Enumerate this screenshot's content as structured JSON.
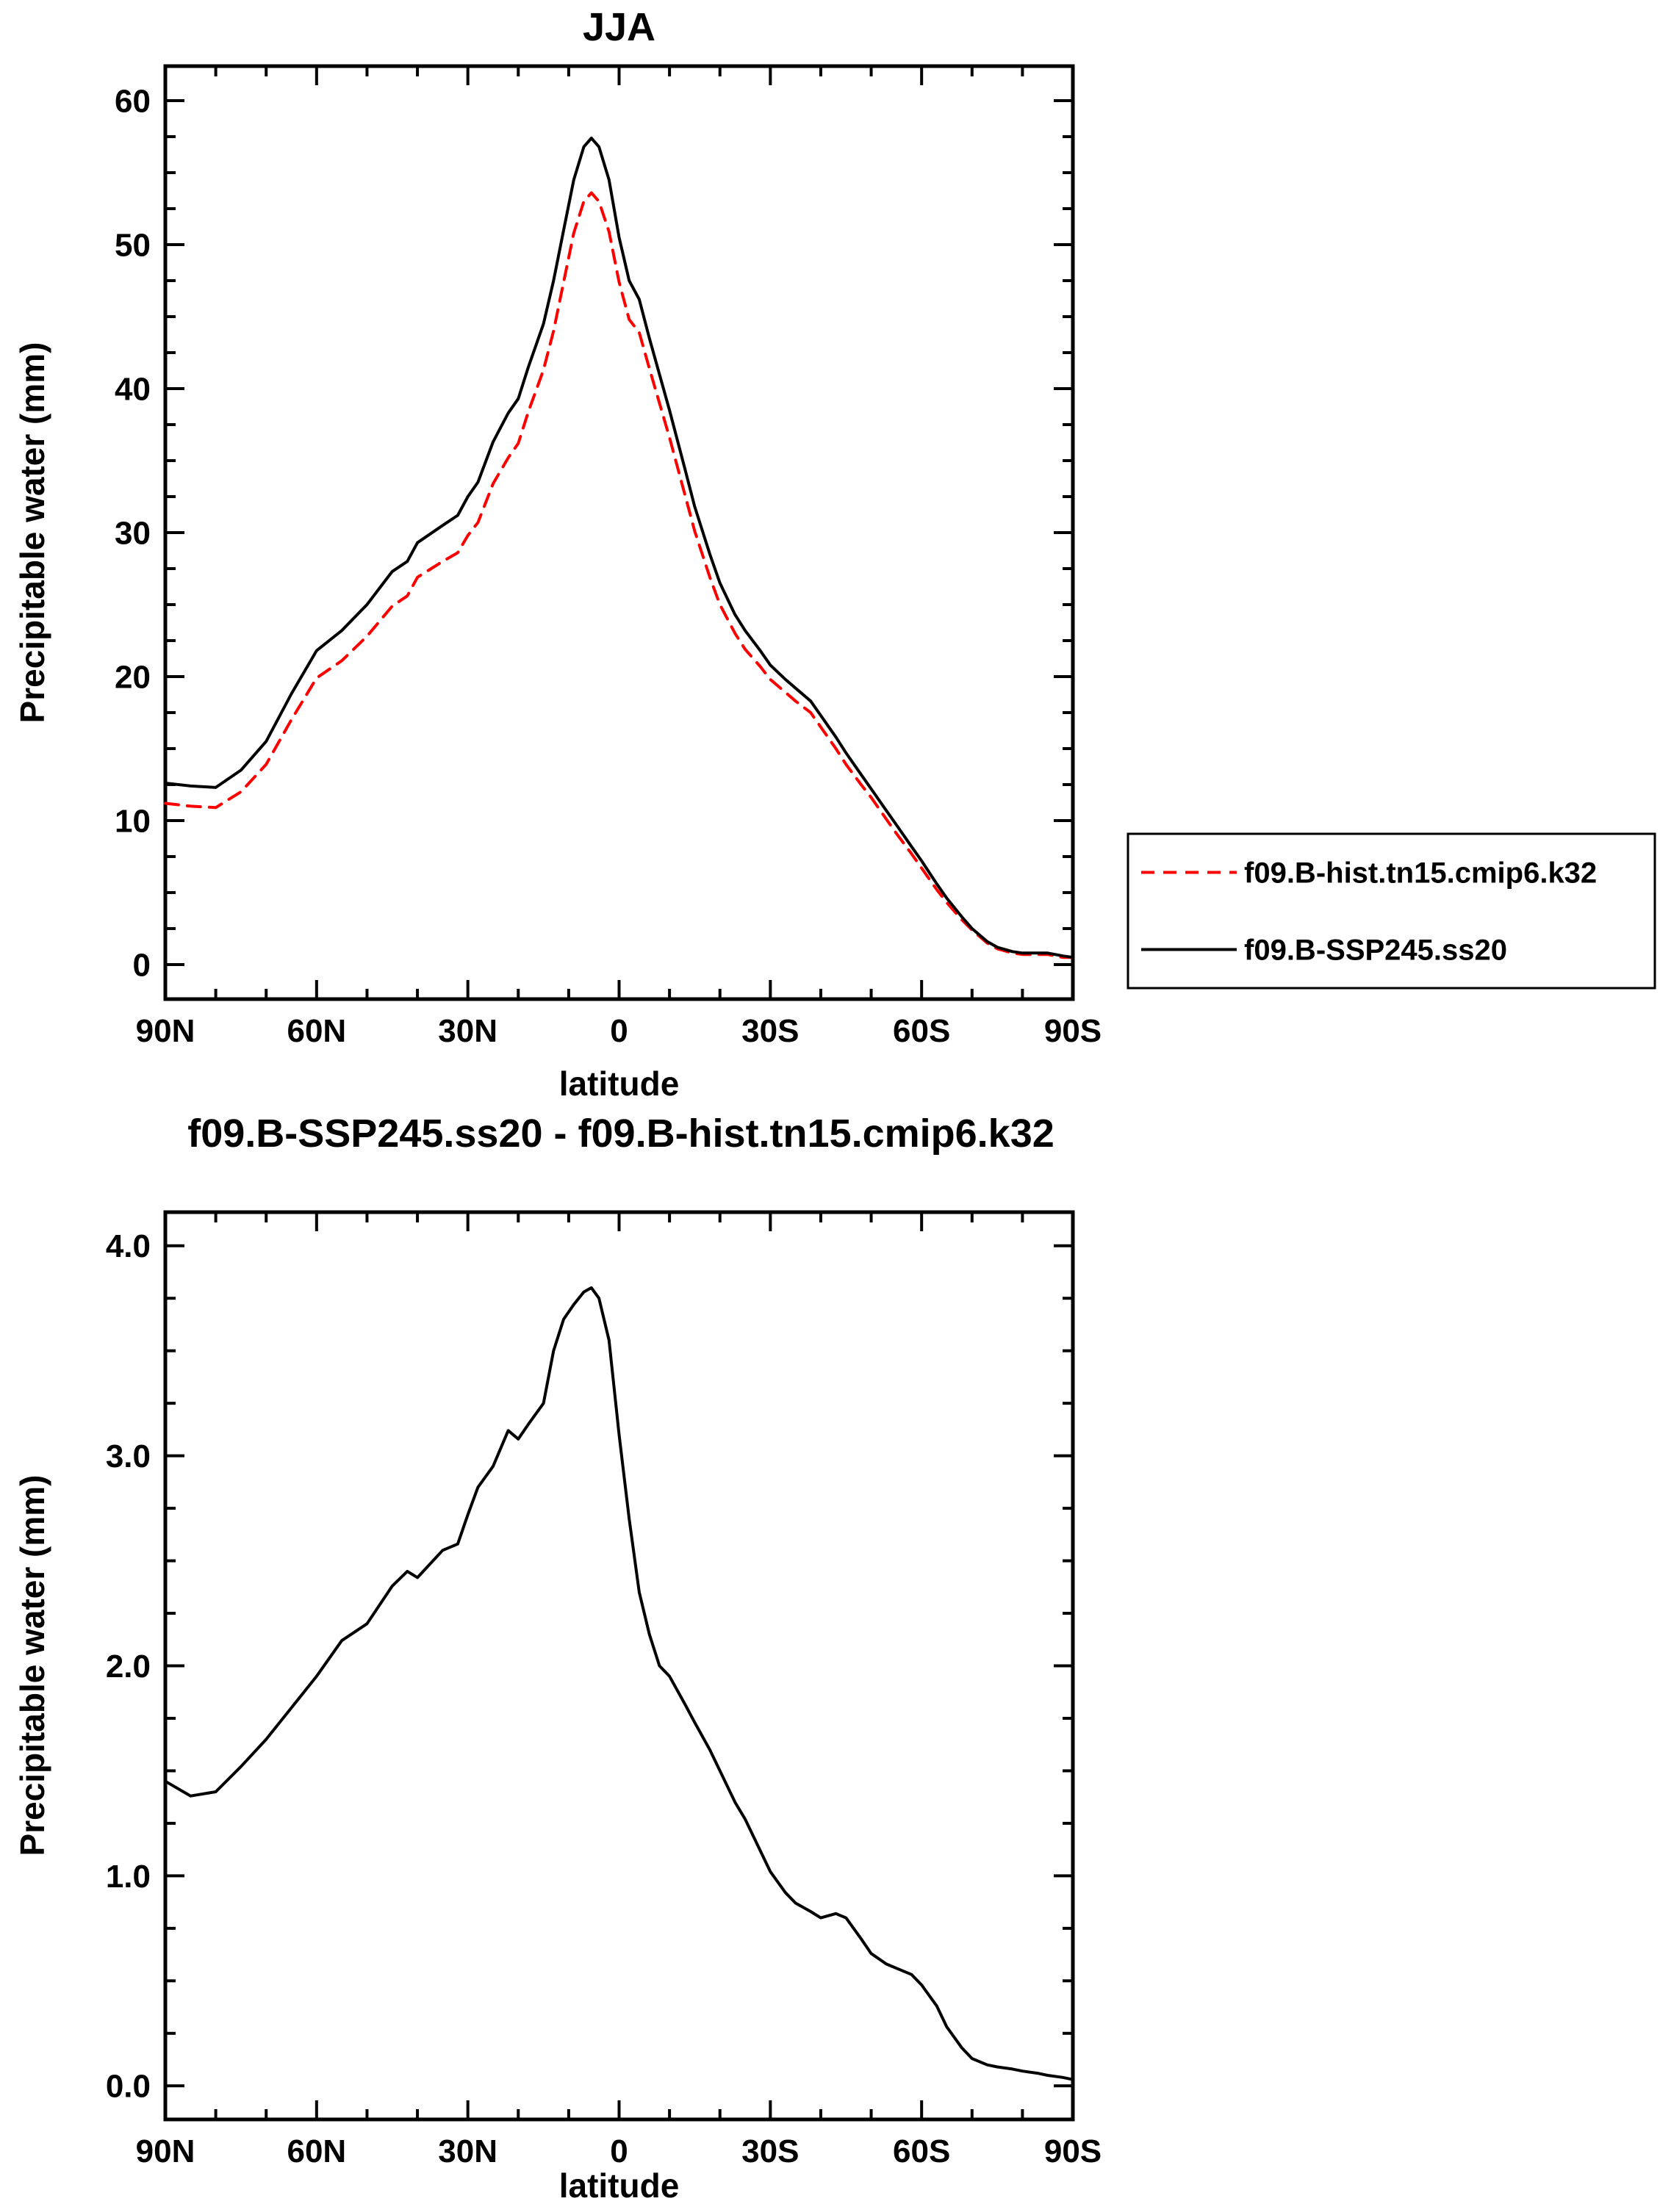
{
  "figure": {
    "background_color": "#ffffff",
    "axis_color": "#000000",
    "hist_color": "#ff0000",
    "ssp_color": "#000000"
  },
  "chart_data": [
    {
      "type": "line",
      "title": "JJA",
      "xlabel": "latitude",
      "ylabel": "Precipitable water (mm)",
      "xlim": [
        90,
        -90
      ],
      "ylim": [
        0,
        60
      ],
      "grid": false,
      "x_major_ticks": [
        90,
        60,
        30,
        0,
        -30,
        -60,
        -90
      ],
      "x_tick_labels": [
        "90N",
        "60N",
        "30N",
        "0",
        "30S",
        "60S",
        "90S"
      ],
      "x_minor_step": 10,
      "y_major_ticks": [
        0,
        10,
        20,
        30,
        40,
        50,
        60
      ],
      "y_tick_labels": [
        "0",
        "10",
        "20",
        "30",
        "40",
        "50",
        "60"
      ],
      "y_minor_step": 2.5,
      "legend_position": "outside-right-bottom",
      "legend": {
        "entries": [
          {
            "label": "f09.B-hist.tn15.cmip6.k32",
            "color": "#ff0000",
            "style": "dashed"
          },
          {
            "label": "f09.B-SSP245.ss20",
            "color": "#000000",
            "style": "solid"
          }
        ]
      },
      "x": [
        90,
        85,
        80,
        75,
        70,
        65,
        60,
        55,
        50,
        45,
        42,
        40,
        35,
        32,
        30,
        28,
        25,
        22,
        20,
        18,
        15,
        13,
        11,
        9,
        7,
        5.5,
        4,
        2,
        0,
        -2,
        -4,
        -6,
        -8,
        -10,
        -13,
        -15,
        -18,
        -20,
        -23,
        -25,
        -28,
        -30,
        -33,
        -35,
        -38,
        -40,
        -43,
        -45,
        -48,
        -50,
        -53,
        -55,
        -58,
        -60,
        -63,
        -65,
        -68,
        -70,
        -73,
        -75,
        -78,
        -80,
        -83,
        -85,
        -88,
        -90
      ],
      "series": [
        {
          "name": "f09.B-hist.tn15.cmip6.k32",
          "color": "#ff0000",
          "style": "dashed",
          "values": [
            11.2,
            11.0,
            10.9,
            12.0,
            13.9,
            17.0,
            19.9,
            21.1,
            22.8,
            24.9,
            25.6,
            26.9,
            28.0,
            28.6,
            29.8,
            30.7,
            33.4,
            35.2,
            36.2,
            38.4,
            41.3,
            44.0,
            47.4,
            50.8,
            53.0,
            53.6,
            53.0,
            50.9,
            47.4,
            44.8,
            43.9,
            41.4,
            39.0,
            36.6,
            32.7,
            30.1,
            26.9,
            25.0,
            23.0,
            21.9,
            20.7,
            19.8,
            18.9,
            18.3,
            17.5,
            16.5,
            15.0,
            13.9,
            12.5,
            11.6,
            10.1,
            9.1,
            7.7,
            6.7,
            5.2,
            4.3,
            3.1,
            2.4,
            1.5,
            1.1,
            0.8,
            0.7,
            0.7,
            0.7,
            0.5,
            0.5
          ]
        },
        {
          "name": "f09.B-SSP245.ss20",
          "color": "#000000",
          "style": "solid",
          "values": [
            12.6,
            12.4,
            12.3,
            13.5,
            15.5,
            18.8,
            21.8,
            23.2,
            25.0,
            27.3,
            28.0,
            29.3,
            30.5,
            31.2,
            32.5,
            33.5,
            36.3,
            38.3,
            39.3,
            41.5,
            44.5,
            47.5,
            51.0,
            54.5,
            56.8,
            57.4,
            56.8,
            54.5,
            50.5,
            47.5,
            46.2,
            43.5,
            41.0,
            38.5,
            34.5,
            31.8,
            28.5,
            26.5,
            24.3,
            23.2,
            21.8,
            20.8,
            19.8,
            19.2,
            18.3,
            17.3,
            15.8,
            14.7,
            13.2,
            12.2,
            10.7,
            9.7,
            8.2,
            7.2,
            5.6,
            4.6,
            3.3,
            2.5,
            1.6,
            1.2,
            0.9,
            0.8,
            0.8,
            0.8,
            0.6,
            0.5
          ]
        }
      ]
    },
    {
      "type": "line",
      "title": "f09.B-SSP245.ss20 - f09.B-hist.tn15.cmip6.k32",
      "xlabel": "latitude",
      "ylabel": "Precipitable water (mm)",
      "xlim": [
        90,
        -90
      ],
      "ylim": [
        0,
        4
      ],
      "grid": false,
      "x_major_ticks": [
        90,
        60,
        30,
        0,
        -30,
        -60,
        -90
      ],
      "x_tick_labels": [
        "90N",
        "60N",
        "30N",
        "0",
        "30S",
        "60S",
        "90S"
      ],
      "x_minor_step": 10,
      "y_major_ticks": [
        0,
        1,
        2,
        3,
        4
      ],
      "y_tick_labels": [
        "0.0",
        "1.0",
        "2.0",
        "3.0",
        "4.0"
      ],
      "y_minor_step": 0.25,
      "legend_position": "none",
      "x": [
        90,
        85,
        80,
        75,
        70,
        65,
        60,
        55,
        50,
        45,
        42,
        40,
        35,
        32,
        30,
        28,
        25,
        22,
        20,
        18,
        15,
        13,
        11,
        9,
        7,
        5.5,
        4,
        2,
        0,
        -2,
        -4,
        -6,
        -8,
        -10,
        -13,
        -15,
        -18,
        -20,
        -23,
        -25,
        -28,
        -30,
        -33,
        -35,
        -38,
        -40,
        -43,
        -45,
        -48,
        -50,
        -53,
        -55,
        -58,
        -60,
        -63,
        -65,
        -68,
        -70,
        -73,
        -75,
        -78,
        -80,
        -83,
        -85,
        -88,
        -90
      ],
      "series": [
        {
          "name": "f09.B-SSP245.ss20 - f09.B-hist.tn15.cmip6.k32",
          "color": "#000000",
          "style": "solid",
          "values": [
            1.45,
            1.38,
            1.4,
            1.52,
            1.65,
            1.8,
            1.95,
            2.12,
            2.2,
            2.38,
            2.45,
            2.42,
            2.55,
            2.58,
            2.72,
            2.85,
            2.95,
            3.12,
            3.08,
            3.15,
            3.25,
            3.5,
            3.65,
            3.72,
            3.78,
            3.8,
            3.75,
            3.55,
            3.1,
            2.7,
            2.35,
            2.15,
            2.0,
            1.95,
            1.82,
            1.73,
            1.6,
            1.5,
            1.35,
            1.27,
            1.12,
            1.02,
            0.92,
            0.87,
            0.83,
            0.8,
            0.82,
            0.8,
            0.7,
            0.63,
            0.58,
            0.56,
            0.53,
            0.48,
            0.38,
            0.28,
            0.18,
            0.13,
            0.1,
            0.09,
            0.08,
            0.07,
            0.06,
            0.05,
            0.04,
            0.03
          ]
        }
      ]
    }
  ]
}
